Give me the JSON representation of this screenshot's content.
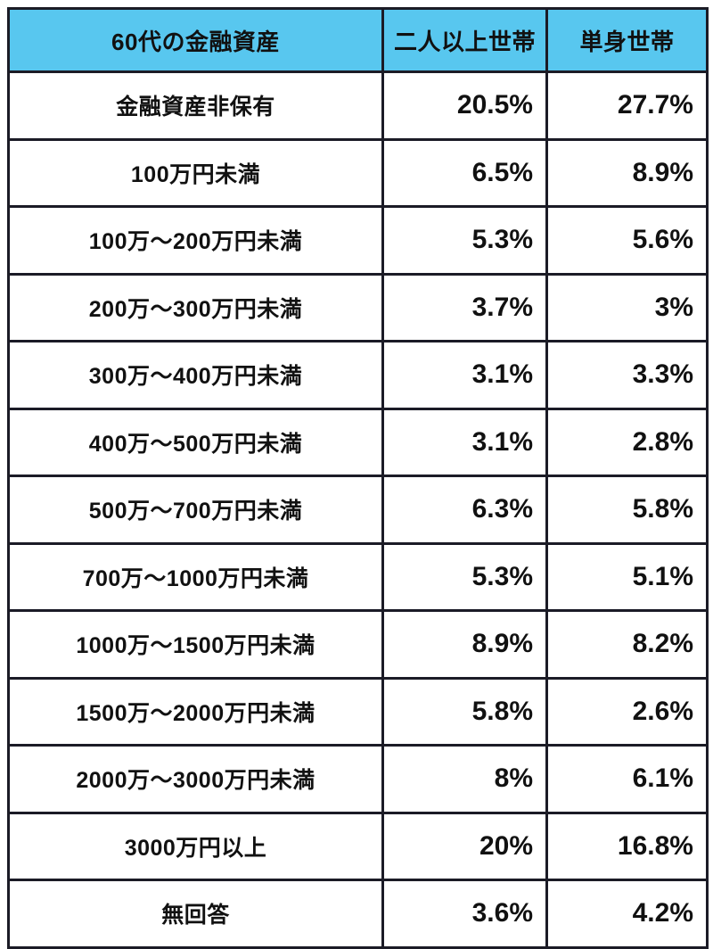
{
  "table": {
    "headers": [
      "60代の金融資産",
      "二人以上世帯",
      "単身世帯"
    ],
    "rows": [
      {
        "category": "金融資産非保有",
        "two_person": "20.5%",
        "single": "27.7%"
      },
      {
        "category": "100万円未満",
        "two_person": "6.5%",
        "single": "8.9%"
      },
      {
        "category": "100万〜200万円未満",
        "two_person": "5.3%",
        "single": "5.6%"
      },
      {
        "category": "200万〜300万円未満",
        "two_person": "3.7%",
        "single": "3%"
      },
      {
        "category": "300万〜400万円未満",
        "two_person": "3.1%",
        "single": "3.3%"
      },
      {
        "category": "400万〜500万円未満",
        "two_person": "3.1%",
        "single": "2.8%"
      },
      {
        "category": "500万〜700万円未満",
        "two_person": "6.3%",
        "single": "5.8%"
      },
      {
        "category": "700万〜1000万円未満",
        "two_person": "5.3%",
        "single": "5.1%"
      },
      {
        "category": "1000万〜1500万円未満",
        "two_person": "8.9%",
        "single": "8.2%"
      },
      {
        "category": "1500万〜2000万円未満",
        "two_person": "5.8%",
        "single": "2.6%"
      },
      {
        "category": "2000万〜3000万円未満",
        "two_person": "8%",
        "single": "6.1%"
      },
      {
        "category": "3000万円以上",
        "two_person": "20%",
        "single": "16.8%"
      },
      {
        "category": "無回答",
        "two_person": "3.6%",
        "single": "4.2%"
      }
    ]
  },
  "colors": {
    "header_bg": "#58c7ef",
    "border": "#1b1b26",
    "text": "#111111"
  },
  "chart_data": {
    "type": "table",
    "title": "60代の金融資産",
    "columns": [
      "60代の金融資産",
      "二人以上世帯",
      "単身世帯"
    ],
    "categories": [
      "金融資産非保有",
      "100万円未満",
      "100万〜200万円未満",
      "200万〜300万円未満",
      "300万〜400万円未満",
      "400万〜500万円未満",
      "500万〜700万円未満",
      "700万〜1000万円未満",
      "1000万〜1500万円未満",
      "1500万〜2000万円未満",
      "2000万〜3000万円未満",
      "3000万円以上",
      "無回答"
    ],
    "series": [
      {
        "name": "二人以上世帯",
        "values": [
          20.5,
          6.5,
          5.3,
          3.7,
          3.1,
          3.1,
          6.3,
          5.3,
          8.9,
          5.8,
          8,
          20,
          3.6
        ]
      },
      {
        "name": "単身世帯",
        "values": [
          27.7,
          8.9,
          5.6,
          3,
          3.3,
          2.8,
          5.8,
          5.1,
          8.2,
          2.6,
          6.1,
          16.8,
          4.2
        ]
      }
    ],
    "unit": "%"
  }
}
